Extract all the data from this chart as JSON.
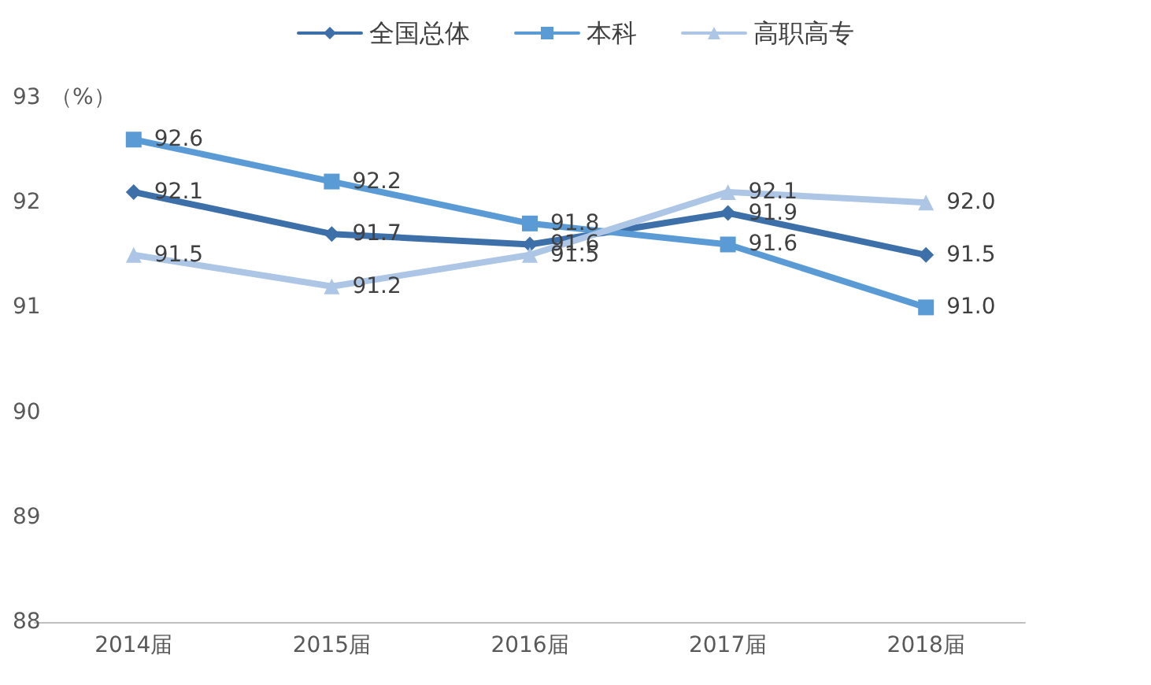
{
  "chart_data": {
    "type": "line",
    "ylabel": "（%）",
    "categories": [
      "2014届",
      "2015届",
      "2016届",
      "2017届",
      "2018届"
    ],
    "series": [
      {
        "name": "全国总体",
        "color": "#3d6fa8",
        "marker": "diamond",
        "values": [
          92.1,
          91.7,
          91.6,
          91.9,
          91.5
        ],
        "value_labels": [
          "92.1",
          "91.7",
          "91.6",
          "91.9",
          "91.5"
        ]
      },
      {
        "name": "本科",
        "color": "#5b9bd5",
        "marker": "square",
        "values": [
          92.6,
          92.2,
          91.8,
          91.6,
          91.0
        ],
        "value_labels": [
          "92.6",
          "92.2",
          "91.8",
          "91.6",
          "91.0"
        ]
      },
      {
        "name": "高职高专",
        "color": "#adc6e6",
        "marker": "triangle",
        "values": [
          91.5,
          91.2,
          91.5,
          92.1,
          92.0
        ],
        "value_labels": [
          "91.5",
          "91.2",
          "91.5",
          "92.1",
          "92.0"
        ]
      }
    ],
    "ylim": [
      88,
      93
    ],
    "yticks": [
      88,
      89,
      90,
      91,
      92,
      93
    ],
    "grid": false,
    "legend": "top",
    "line_style": "solid"
  }
}
